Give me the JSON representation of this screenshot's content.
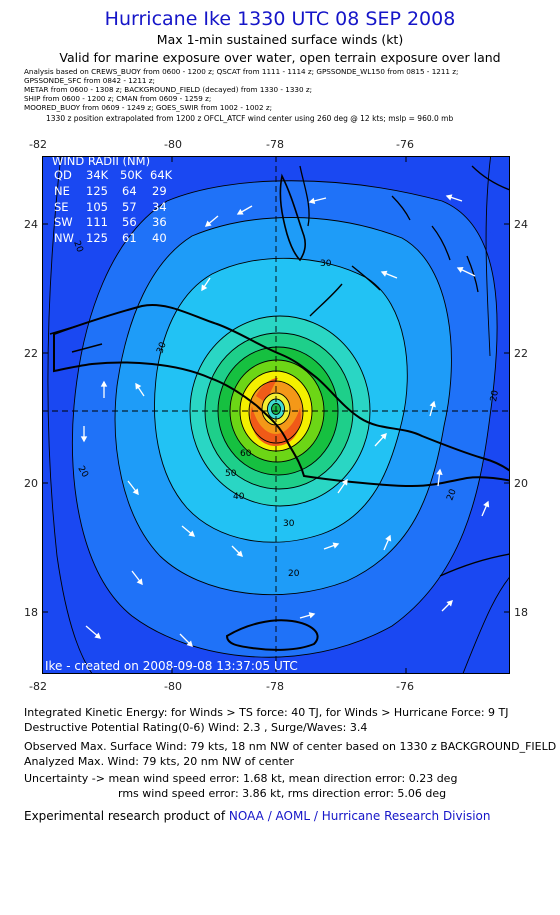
{
  "header": {
    "title": "Hurricane Ike 1330 UTC 08 SEP 2008",
    "subtitle1": "Max 1-min sustained surface winds (kt)",
    "subtitle2": "Valid for marine exposure over water, open terrain exposure over land"
  },
  "analysis_lines": [
    "Analysis based on   CREWS_BUOY from 0600 - 1200 z;   QSCAT from 1111 - 1114 z;   GPSSONDE_WL150 from 0815 - 1211 z;",
    "GPSSONDE_SFC from 0842 - 1211 z;",
    "METAR from 0600 - 1308 z;   BACKGROUND_FIELD (decayed) from 1330 - 1330 z;",
    "SHIP from 0600 - 1200 z;   CMAN from 0609 - 1259 z;",
    "MOORED_BUOY from 0609 - 1249 z;   GOES_SWIR from 1002 - 1002 z;"
  ],
  "position_note": "1330 z position extrapolated from 1200 z OFCL_ATCF wind center using 260 deg @ 12 kts; mslp = 960.0 mb",
  "map": {
    "lon_ticks": [
      "-82",
      "-80",
      "-78",
      "-76"
    ],
    "lat_ticks": [
      "24",
      "22",
      "20",
      "18"
    ],
    "contour_labels": [
      "20",
      "20",
      "20",
      "30",
      "30",
      "30",
      "40",
      "50",
      "60",
      "20",
      "20"
    ],
    "wind_radii": {
      "title": "WIND RADII (NM)",
      "header": [
        "QD",
        "34K",
        "50K",
        "64K"
      ],
      "rows": [
        [
          "NE",
          "125",
          "64",
          "29"
        ],
        [
          "SE",
          "105",
          "57",
          "34"
        ],
        [
          "SW",
          "111",
          "56",
          "36"
        ],
        [
          "NW",
          "125",
          "61",
          "40"
        ]
      ]
    },
    "created": "Ike - created on 2008-09-08 13:37:05 UTC",
    "colors": {
      "outer": "#1a48f2",
      "band20": "#1f72f8",
      "band30": "#1e9cf8",
      "band40": "#22c2f4",
      "band50": "#2ad6c4",
      "band60": "#1ecf8a",
      "band70": "#16c040",
      "green": "#6cd616",
      "yellow": "#f4f000",
      "orange": "#f49818",
      "red": "#f05a18",
      "eye_yellow": "#f4ee30",
      "eye_cyan": "#40dcd0",
      "eye_green": "#1cb84c"
    }
  },
  "footer": {
    "ike_line": "Integrated Kinetic Energy:  for Winds > TS force: 40 TJ,  for Winds > Hurricane Force: 9 TJ",
    "dp_line": "Destructive Potential Rating(0-6)   Wind: 2.3 , Surge/Waves: 3.4",
    "observed": "Observed Max. Surface Wind: 79 kts, 18 nm NW of center based on 1330 z BACKGROUND_FIELD",
    "analyzed": "Analyzed Max. Wind: 79 kts, 20 nm NW of center",
    "uncert1": "Uncertainty -> mean wind speed error: 1.68 kt,   mean direction error: 0.23 deg",
    "uncert2": "rms wind speed error: 3.86 kt,   rms direction error: 5.06 deg",
    "product_prefix": "Experimental research product of ",
    "product_link": "NOAA / AOML / Hurricane Research Division"
  }
}
